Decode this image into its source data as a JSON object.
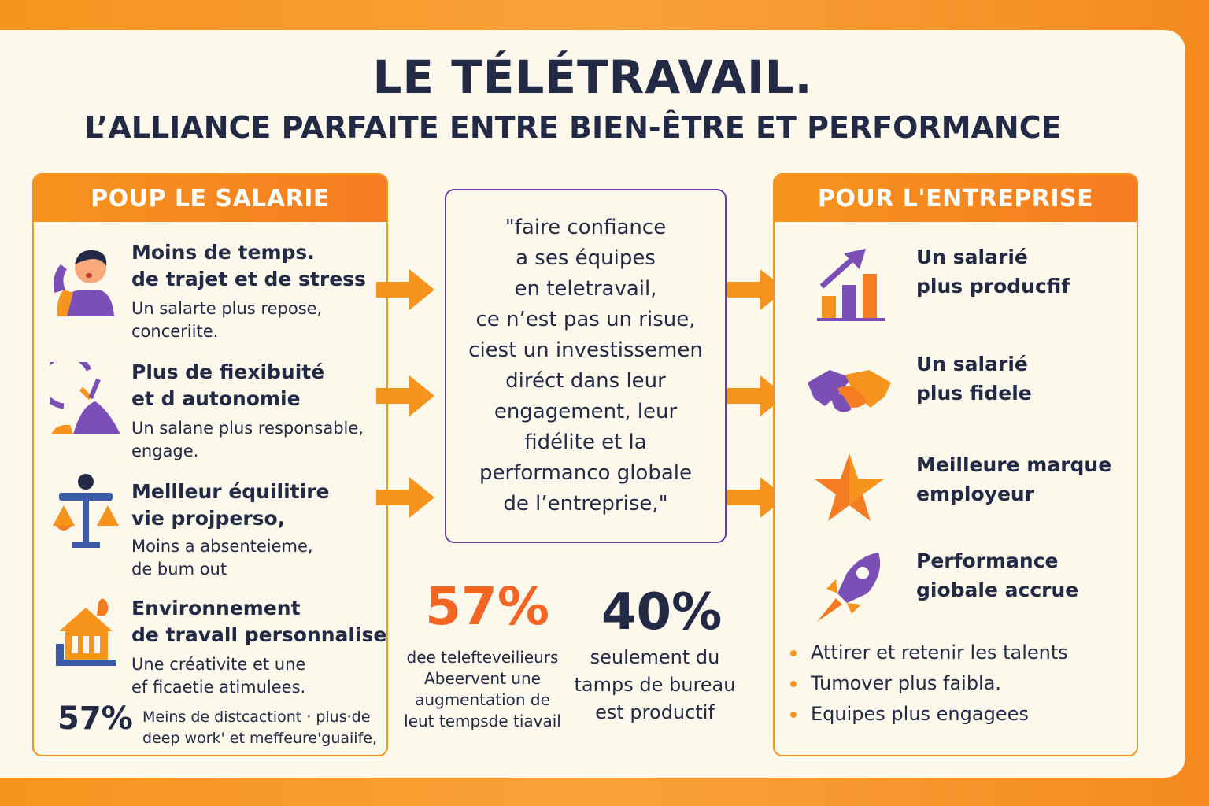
{
  "header": {
    "title": "LE TÉLÉTRAVAIL.",
    "subtitle": "L’ALLIANCE PARFAITE ENTRE BIEN-ÊTRE ET  PERFORMANCE"
  },
  "left_panel": {
    "heading": "POUP LE SALARIE",
    "items": [
      {
        "title_1": "Moins de temps.",
        "title_2": "de trajet et de stress",
        "desc_1": "Un salarte plus repose,",
        "desc_2": "conceriite.",
        "icon": "stressed-person-icon"
      },
      {
        "title_1": "Plus de fiexibuité",
        "title_2": "et d autonomie",
        "desc_1": "Un salane plus responsable,",
        "desc_2": "engage.",
        "icon": "clock-person-icon"
      },
      {
        "title_1": "Mellleur équilitire",
        "title_2": "vie projperso,",
        "desc_1": "Moins a absenteieme,",
        "desc_2": "de bum out",
        "icon": "balance-scale-icon"
      },
      {
        "title_1": "Environnement",
        "title_2": "de travall personnalise",
        "desc_1": "Une créativite et une",
        "desc_2": "ef ficaetie atimulees.",
        "icon": "house-icon"
      }
    ],
    "stat": {
      "value": "57%",
      "desc_1": "Meins de distcactiont · plus·de",
      "desc_2": "deep work' et meffeure'guaiife,"
    }
  },
  "quote": {
    "lines": [
      "\"faire confiance",
      "a ses équipes",
      "en teletravail,",
      "ce n’est pas un risue,",
      "ciest un investissemen",
      "diréct dans leur",
      "engagement, leur",
      "fidélite et la",
      "performanco globale",
      "de l’entreprise,\""
    ]
  },
  "stats": [
    {
      "value": "57%",
      "color": "#f26522",
      "desc_1": "dee telefteveilieurs",
      "desc_2": "Abeervent une",
      "desc_3": "augmentation de",
      "desc_4": "leut tempsde tiavail"
    },
    {
      "value": "40%",
      "color": "#222a45",
      "desc_1": "seulement du",
      "desc_2": "tamps de bureau",
      "desc_3": "est productif"
    }
  ],
  "right_panel": {
    "heading": "POUR L'ENTREPRISE",
    "items": [
      {
        "line_1": "Un salarié",
        "line_2": "plus producfif",
        "icon": "bar-chart-growth-icon"
      },
      {
        "line_1": "Un salarié",
        "line_2": "plus fidele",
        "icon": "handshake-icon"
      },
      {
        "line_1": "Meilleure marque",
        "line_2": "employeur",
        "icon": "star-icon"
      },
      {
        "line_1": "Performance",
        "line_2": "giobale accrue",
        "icon": "rocket-icon"
      }
    ],
    "bullets": [
      "Attirer et retenir les talents",
      "Tumover plus faibla.",
      "Equipes plus engagees"
    ]
  },
  "colors": {
    "orange": "#f7941d",
    "purple": "#6b3fa0",
    "navy": "#222a45",
    "blue": "#3b5ba9"
  }
}
